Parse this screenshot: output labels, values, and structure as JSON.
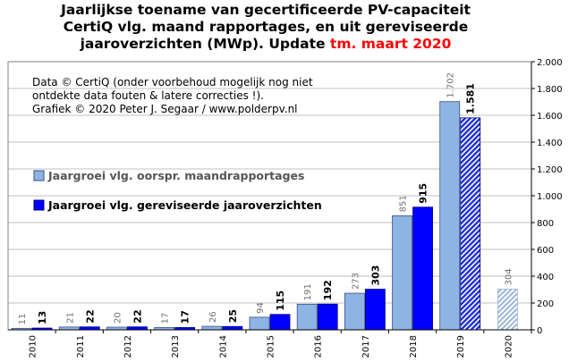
{
  "title": {
    "line1": "Jaarlijkse toename van gecertificeerde PV-capaciteit",
    "line2": "CertiQ vlg. maand rapportages, en uit gereviseerde",
    "line3_prefix": "jaaroverzichten (MWp). Update ",
    "line3_highlight": "tm. maart 2020"
  },
  "notes": [
    "Data © CertiQ (onder voorbehoud mogelijk  nog niet",
    "ontdekte data fouten & latere correcties !).",
    "Grafiek  © 2020 Peter J. Segaar / www.polderpv.nl"
  ],
  "colors": {
    "original": "#8db4e2",
    "revised": "#0000ff",
    "partial": "#b8cce4",
    "grid": "#c0c0c0"
  },
  "chart_data": {
    "type": "bar",
    "categories": [
      "2010",
      "2011",
      "2012",
      "2013",
      "2014",
      "2015",
      "2016",
      "2017",
      "2018",
      "2019",
      "2020"
    ],
    "series": [
      {
        "name": "Jaargroei vlg. oorspr. maandrapportages",
        "values": [
          11,
          21,
          20,
          17,
          26,
          94,
          191,
          273,
          851,
          1702,
          304
        ],
        "labels": [
          "11",
          "21",
          "20",
          "17",
          "26",
          "94",
          "191",
          "273",
          "851",
          "1.702",
          "304"
        ]
      },
      {
        "name": "Jaargroei vlg. gereviseerde jaaroverzichten",
        "values": [
          13,
          22,
          22,
          17,
          25,
          115,
          192,
          303,
          915,
          1581,
          null
        ],
        "labels": [
          "13",
          "22",
          "22",
          "17",
          "25",
          "115",
          "192",
          "303",
          "915",
          "1.581",
          ""
        ]
      }
    ],
    "hatched": [
      "2019 gereviseerde jaaroverzichten",
      "2020 oorspr. maandrapportages"
    ],
    "yaxis_side": "right",
    "ylim": [
      0,
      2000
    ],
    "yticks": [
      0,
      200,
      400,
      600,
      800,
      1000,
      1200,
      1400,
      1600,
      1800,
      2000
    ],
    "ytick_labels": [
      "0",
      "200",
      "400",
      "600",
      "800",
      "1.000",
      "1.200",
      "1.400",
      "1.600",
      "1.800",
      "2.000"
    ],
    "grid": true,
    "legend_placement": "middle-left"
  }
}
